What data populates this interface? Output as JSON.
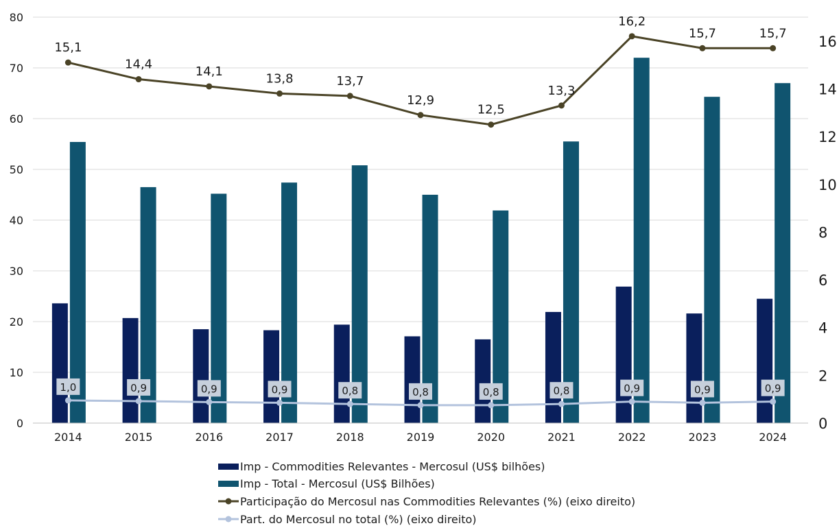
{
  "chart_data": {
    "type": "bar",
    "categories": [
      "2014",
      "2015",
      "2016",
      "2017",
      "2018",
      "2019",
      "2020",
      "2021",
      "2022",
      "2023",
      "2024"
    ],
    "series": [
      {
        "name": "Imp - Commodities Relevantes - Mercosul (US$ bilhões)",
        "kind": "bar",
        "axis": "left",
        "color": "#0a1f5c",
        "values": [
          23.6,
          20.7,
          18.5,
          18.3,
          19.4,
          17.1,
          16.5,
          21.9,
          26.9,
          21.6,
          24.5
        ]
      },
      {
        "name": "Imp - Total - Mercosul (US$ Bilhões)",
        "kind": "bar",
        "axis": "left",
        "color": "#10546f",
        "values": [
          55.4,
          46.5,
          45.2,
          47.4,
          50.8,
          45.0,
          41.9,
          55.5,
          72.0,
          64.3,
          67.0
        ]
      },
      {
        "name": "Participação do Mercosul nas Commodities Relevantes (%) (eixo direito)",
        "kind": "line",
        "axis": "right",
        "color": "#4a4326",
        "values": [
          15.1,
          14.4,
          14.1,
          13.8,
          13.7,
          12.9,
          12.5,
          13.3,
          16.2,
          15.7,
          15.7
        ],
        "labels": [
          "15,1",
          "14,4",
          "14,1",
          "13,8",
          "13,7",
          "12,9",
          "12,5",
          "13,3",
          "16,2",
          "15,7",
          "15,7"
        ]
      },
      {
        "name": "Part. do Mercosul no total (%) (eixo direito)",
        "kind": "line",
        "axis": "right",
        "color": "#b3c3dd",
        "values": [
          0.95,
          0.92,
          0.88,
          0.85,
          0.8,
          0.75,
          0.75,
          0.8,
          0.9,
          0.85,
          0.9
        ],
        "labels": [
          "1,0",
          "0,9",
          "0,9",
          "0,9",
          "0,8",
          "0,8",
          "0,8",
          "0,8",
          "0,9",
          "0,9",
          "0,9"
        ]
      }
    ],
    "left_axis": {
      "min": 0,
      "max": 80,
      "ticks": [
        "0",
        "10",
        "20",
        "30",
        "40",
        "50",
        "60",
        "70",
        "80"
      ]
    },
    "right_axis": {
      "min": 0,
      "max": 17,
      "ticks": [
        "0",
        "2",
        "4",
        "6",
        "8",
        "10",
        "12",
        "14",
        "16"
      ]
    },
    "grid": true,
    "legend_position": "bottom"
  }
}
